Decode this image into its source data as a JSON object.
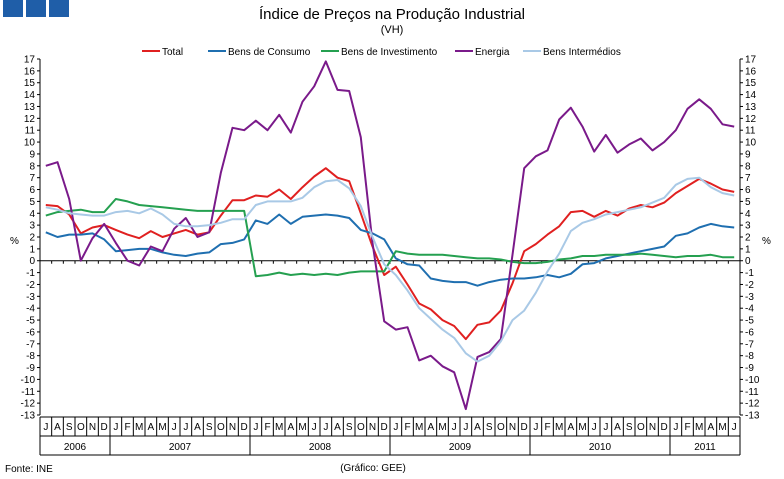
{
  "header": {
    "title": "Índice de Preços na Produção Industrial",
    "subtitle": "(VH)",
    "brand_color": "#1f5ea8"
  },
  "footer": {
    "source": "Fonte: INE",
    "credit": "(Gráfico: GEE)"
  },
  "chart_data": {
    "type": "line",
    "title": "Índice de Preços na Produção Industrial",
    "subtitle": "(VH)",
    "ylabel_left": "%",
    "ylabel_right": "%",
    "ylim": [
      -13,
      17
    ],
    "yticks": [
      17,
      16,
      15,
      14,
      13,
      12,
      11,
      10,
      9,
      8,
      7,
      6,
      5,
      4,
      3,
      2,
      1,
      0,
      -1,
      -2,
      -3,
      -4,
      -5,
      -6,
      -7,
      -8,
      -9,
      -10,
      -11,
      -12,
      -13
    ],
    "grid": false,
    "legend_position": "top",
    "months": [
      "J",
      "A",
      "S",
      "O",
      "N",
      "D",
      "J",
      "F",
      "M",
      "A",
      "M",
      "J",
      "J",
      "A",
      "S",
      "O",
      "N",
      "D",
      "J",
      "F",
      "M",
      "A",
      "M",
      "J",
      "J",
      "A",
      "S",
      "O",
      "N",
      "D",
      "J",
      "F",
      "M",
      "A",
      "M",
      "J",
      "J",
      "A",
      "S",
      "O",
      "N",
      "D",
      "J",
      "F",
      "M",
      "A",
      "M",
      "J",
      "J",
      "A",
      "S",
      "O",
      "N",
      "D",
      "J",
      "F",
      "M",
      "A",
      "M",
      "J"
    ],
    "years": [
      {
        "label": "2006",
        "start": 0,
        "count": 6
      },
      {
        "label": "2007",
        "start": 6,
        "count": 12
      },
      {
        "label": "2008",
        "start": 18,
        "count": 12
      },
      {
        "label": "2009",
        "start": 30,
        "count": 12
      },
      {
        "label": "2010",
        "start": 42,
        "count": 12
      },
      {
        "label": "2011",
        "start": 54,
        "count": 6
      }
    ],
    "series": [
      {
        "name": "Total",
        "color": "#e02020",
        "values": [
          4.7,
          4.6,
          3.9,
          2.3,
          2.8,
          3.0,
          2.6,
          2.2,
          1.9,
          2.5,
          2.0,
          2.3,
          2.6,
          2.2,
          2.4,
          3.8,
          5.1,
          5.1,
          5.5,
          5.4,
          6.0,
          5.2,
          6.2,
          7.1,
          7.8,
          7.0,
          6.7,
          4.0,
          1.2,
          -1.2,
          -0.5,
          -2.0,
          -3.6,
          -4.1,
          -5.0,
          -5.5,
          -6.6,
          -5.4,
          -5.2,
          -4.2,
          -1.9,
          0.8,
          1.4,
          2.2,
          2.9,
          4.1,
          4.2,
          3.7,
          4.2,
          3.8,
          4.4,
          4.7,
          4.5,
          4.9,
          5.7,
          6.3,
          6.9,
          6.5,
          6.0,
          5.8
        ]
      },
      {
        "name": "Bens de Consumo",
        "color": "#1f6fb0",
        "values": [
          2.4,
          2.0,
          2.2,
          2.2,
          2.3,
          1.8,
          0.8,
          0.9,
          1.0,
          1.0,
          0.7,
          0.5,
          0.4,
          0.6,
          0.7,
          1.4,
          1.5,
          1.8,
          3.4,
          3.1,
          3.9,
          3.1,
          3.7,
          3.8,
          3.9,
          3.8,
          3.6,
          2.6,
          2.3,
          1.8,
          0.2,
          -0.3,
          -0.4,
          -1.5,
          -1.7,
          -1.8,
          -1.8,
          -2.1,
          -1.8,
          -1.6,
          -1.5,
          -1.5,
          -1.4,
          -1.2,
          -1.4,
          -1.1,
          -0.3,
          -0.2,
          0.2,
          0.4,
          0.6,
          0.8,
          1.0,
          1.2,
          2.1,
          2.3,
          2.8,
          3.1,
          2.9,
          2.8
        ]
      },
      {
        "name": "Bens de Investimento",
        "color": "#25a050",
        "values": [
          3.8,
          4.1,
          4.2,
          4.3,
          4.1,
          4.1,
          5.2,
          5.0,
          4.7,
          4.6,
          4.5,
          4.4,
          4.3,
          4.2,
          4.2,
          4.2,
          4.2,
          4.2,
          -1.3,
          -1.2,
          -1.0,
          -1.2,
          -1.1,
          -1.2,
          -1.1,
          -1.2,
          -1.0,
          -0.9,
          -0.9,
          -0.9,
          0.8,
          0.6,
          0.5,
          0.5,
          0.5,
          0.4,
          0.3,
          0.2,
          0.2,
          0.1,
          -0.1,
          -0.2,
          -0.2,
          -0.1,
          0.1,
          0.2,
          0.4,
          0.4,
          0.5,
          0.5,
          0.5,
          0.6,
          0.5,
          0.4,
          0.3,
          0.4,
          0.4,
          0.5,
          0.3,
          0.3
        ]
      },
      {
        "name": "Energia",
        "color": "#7a1a8a",
        "values": [
          8.0,
          8.3,
          5.2,
          0.0,
          1.9,
          3.1,
          1.5,
          0.0,
          -0.4,
          1.2,
          0.8,
          2.7,
          3.6,
          2.0,
          2.4,
          7.4,
          11.2,
          11.0,
          11.8,
          11.0,
          12.3,
          10.8,
          13.4,
          14.7,
          16.8,
          14.4,
          14.3,
          10.4,
          1.5,
          -5.1,
          -5.8,
          -5.6,
          -8.4,
          -8.0,
          -8.9,
          -9.4,
          -12.5,
          -8.1,
          -7.7,
          -6.6,
          0.5,
          7.8,
          8.8,
          9.3,
          11.9,
          12.9,
          11.3,
          9.2,
          10.6,
          9.1,
          9.8,
          10.3,
          9.3,
          10.0,
          11.0,
          12.8,
          13.6,
          12.8,
          11.5,
          11.3
        ]
      },
      {
        "name": "Bens Intermédios",
        "color": "#a9c9e6",
        "values": [
          4.5,
          4.3,
          4.0,
          3.9,
          3.8,
          3.8,
          4.1,
          4.2,
          4.0,
          4.4,
          3.9,
          3.1,
          2.9,
          2.9,
          3.0,
          3.2,
          3.5,
          3.5,
          4.7,
          5.0,
          5.0,
          5.0,
          5.3,
          6.2,
          6.7,
          6.8,
          6.1,
          4.6,
          2.0,
          -0.3,
          -1.2,
          -2.5,
          -4.0,
          -4.9,
          -5.8,
          -6.5,
          -7.8,
          -8.5,
          -8.0,
          -6.8,
          -5.0,
          -4.2,
          -2.7,
          -0.9,
          0.6,
          2.5,
          3.2,
          3.5,
          3.9,
          4.1,
          4.3,
          4.5,
          4.9,
          5.3,
          6.4,
          6.9,
          7.0,
          6.2,
          5.7,
          5.5
        ]
      }
    ]
  }
}
